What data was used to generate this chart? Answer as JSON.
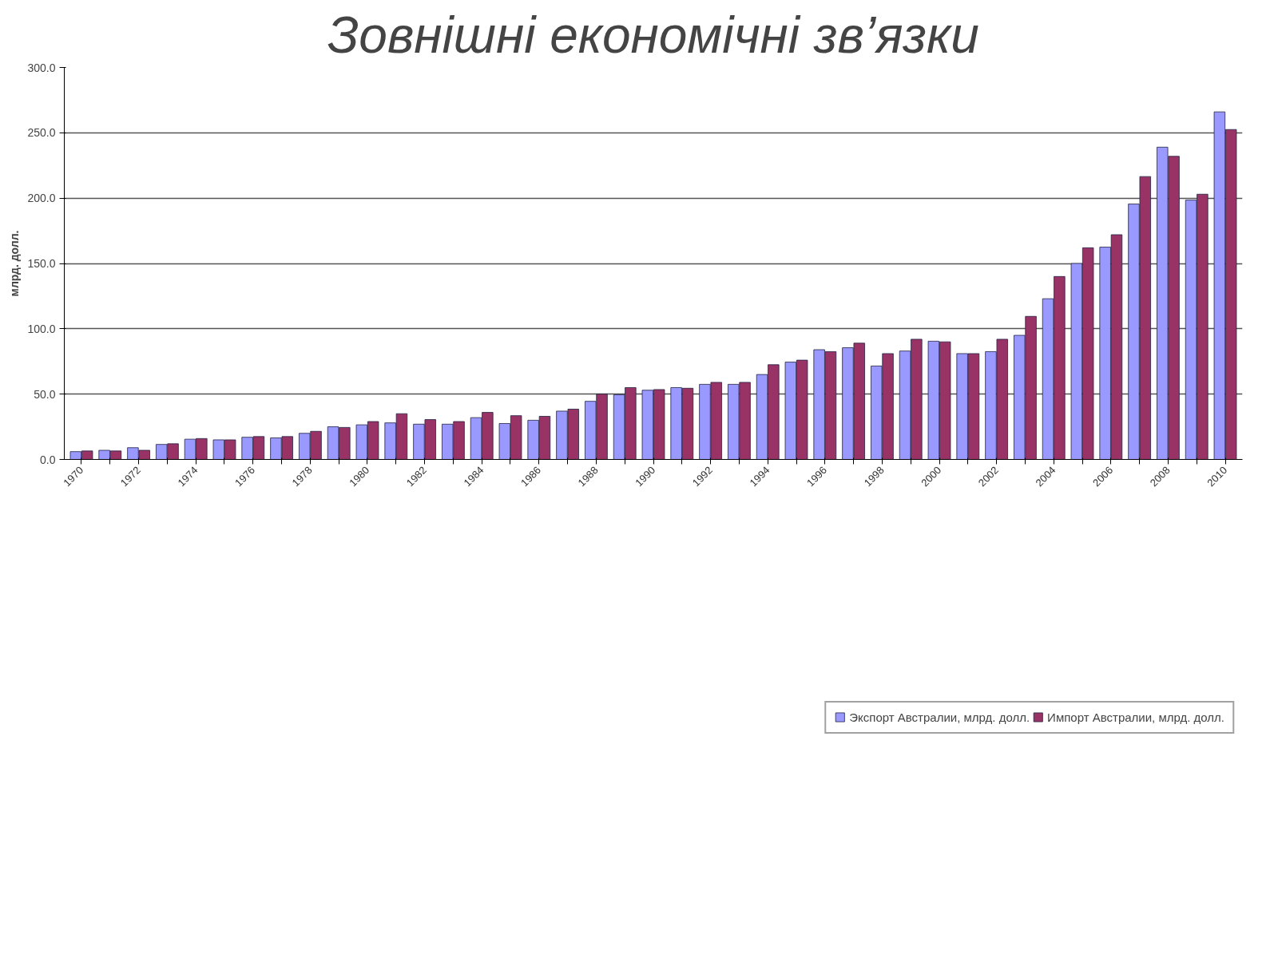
{
  "chart_data": {
    "type": "bar",
    "title": "Зовнішні економічні зв’язки",
    "ylabel": "млрд. долл.",
    "categories": [
      "1970",
      null,
      "1972",
      null,
      "1974",
      null,
      "1976",
      null,
      "1978",
      null,
      "1980",
      null,
      "1982",
      null,
      "1984",
      null,
      "1986",
      null,
      "1988",
      null,
      "1990",
      null,
      "1992",
      null,
      "1994",
      null,
      "1996",
      null,
      "1998",
      null,
      "2000",
      null,
      "2002",
      null,
      "2004",
      null,
      "2006",
      null,
      "2008",
      null,
      "2010"
    ],
    "series": [
      {
        "name": "Экспорт Австралии, млрд. долл.",
        "color": "#9999ff",
        "values": [
          6,
          7,
          9,
          11.5,
          15.5,
          15,
          17,
          16.5,
          20,
          25,
          26.5,
          28,
          27,
          27,
          32,
          27.5,
          30,
          37,
          44.5,
          49.5,
          53,
          55,
          57.5,
          57.5,
          65,
          74.5,
          84,
          85.5,
          71.5,
          83,
          90.5,
          81,
          82.5,
          95,
          123,
          150,
          162.5,
          195.5,
          239,
          198.5,
          266
        ]
      },
      {
        "name": "Импорт Австралии, млрд. долл.",
        "color": "#993366",
        "values": [
          6.5,
          6.5,
          7,
          12,
          16,
          15,
          17.5,
          17.5,
          21.5,
          24.5,
          29,
          35,
          30.5,
          29,
          36,
          33.5,
          33,
          38.5,
          50,
          55,
          53.5,
          54.5,
          59,
          59,
          72.5,
          76,
          82.5,
          89,
          81,
          92,
          90,
          81,
          92,
          109.5,
          140,
          162,
          172,
          216.5,
          232,
          203,
          252.5
        ]
      }
    ],
    "ylim": [
      0,
      300
    ],
    "yticks": [
      {
        "value": 0,
        "label": "0.0"
      },
      {
        "value": 50,
        "label": "50.0"
      },
      {
        "value": 100,
        "label": "100.0"
      },
      {
        "value": 150,
        "label": "150.0"
      },
      {
        "value": 200,
        "label": "200.0"
      },
      {
        "value": 250,
        "label": "250.0"
      },
      {
        "value": 300,
        "label": "300.0"
      }
    ],
    "grid": "y",
    "legend": "bottom"
  }
}
